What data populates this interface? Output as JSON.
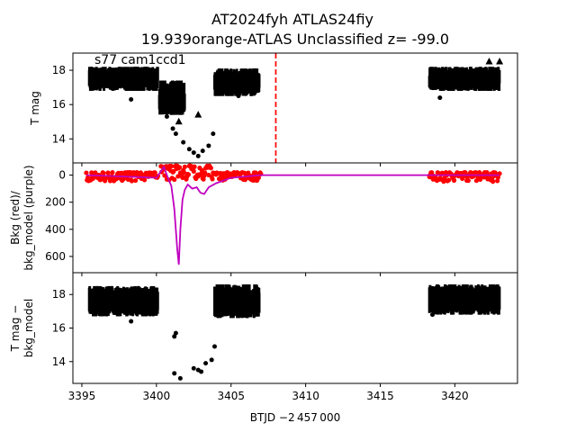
{
  "figure": {
    "title_line1": "AT2024fyh  ATLAS24fiy",
    "title_line2": "19.939orange-ATLAS Unclassified z= -99.0",
    "annotation": "s77 cam1ccd1",
    "xlabel": "BTJD −2 457 000"
  },
  "colors": {
    "points": "#000000",
    "background": "#ff0000",
    "model": "#c000c0",
    "event_line": "#ff0000"
  },
  "chart_data": [
    {
      "type": "scatter",
      "ylabel": "T mag",
      "xlim": [
        3394.4,
        3424.2
      ],
      "ylim": [
        19.0,
        12.6
      ],
      "inverted_y": true,
      "x_ticks": [
        3395,
        3400,
        3405,
        3410,
        3415,
        3420
      ],
      "y_ticks": [
        14,
        16,
        18
      ],
      "vline_x": 3408.0,
      "segments": [
        {
          "x_start": 3395.5,
          "x_end": 3400.1,
          "y_low": 16.8,
          "y_high": 18.2
        },
        {
          "x_start": 3400.2,
          "x_end": 3401.9,
          "y_low": 15.4,
          "y_high": 17.4
        },
        {
          "x_start": 3403.9,
          "x_end": 3406.9,
          "y_low": 16.5,
          "y_high": 18.1
        },
        {
          "x_start": 3418.3,
          "x_end": 3423.0,
          "y_low": 16.8,
          "y_high": 18.2
        }
      ],
      "outliers": [
        {
          "x": 3398.3,
          "y": 16.3
        },
        {
          "x": 3400.7,
          "y": 15.3
        },
        {
          "x": 3401.1,
          "y": 14.6
        },
        {
          "x": 3401.3,
          "y": 14.3
        },
        {
          "x": 3401.8,
          "y": 13.8
        },
        {
          "x": 3402.2,
          "y": 13.4
        },
        {
          "x": 3402.5,
          "y": 13.2
        },
        {
          "x": 3402.8,
          "y": 13.0
        },
        {
          "x": 3403.1,
          "y": 13.3
        },
        {
          "x": 3403.5,
          "y": 13.6
        },
        {
          "x": 3403.8,
          "y": 14.3
        },
        {
          "x": 3405.5,
          "y": 16.5
        },
        {
          "x": 3419.0,
          "y": 16.4
        }
      ],
      "triangles": [
        {
          "x": 3400.8,
          "y": 15.9
        },
        {
          "x": 3401.1,
          "y": 16.1
        },
        {
          "x": 3401.5,
          "y": 15.0
        },
        {
          "x": 3402.8,
          "y": 15.4
        },
        {
          "x": 3422.3,
          "y": 18.5
        },
        {
          "x": 3423.0,
          "y": 18.5
        }
      ]
    },
    {
      "type": "line",
      "ylabel": "Bkg (red)/\nbkg_model (purple)",
      "xlim": [
        3394.4,
        3424.2
      ],
      "ylim": [
        -90,
        720
      ],
      "x_ticks": [
        3395,
        3400,
        3405,
        3410,
        3415,
        3420
      ],
      "y_ticks": [
        0,
        200,
        400,
        600
      ],
      "background_segments": [
        {
          "x_start": 3395.3,
          "x_end": 3400.1,
          "y_low": -20,
          "y_high": 45
        },
        {
          "x_start": 3400.3,
          "x_end": 3403.8,
          "y_low": -70,
          "y_high": 40
        },
        {
          "x_start": 3403.9,
          "x_end": 3407.0,
          "y_low": -20,
          "y_high": 40
        },
        {
          "x_start": 3418.3,
          "x_end": 3423.0,
          "y_low": -20,
          "y_high": 50
        }
      ],
      "model_line": {
        "x": [
          3395.3,
          3399.0,
          3400.0,
          3400.5,
          3400.8,
          3401.0,
          3401.2,
          3401.4,
          3401.5,
          3401.6,
          3401.75,
          3401.9,
          3402.1,
          3402.4,
          3402.7,
          3402.95,
          3403.2,
          3403.5,
          3404.0,
          3405.0,
          3406.0,
          3407.0,
          3418.3,
          3423.0
        ],
        "y": [
          0,
          15,
          20,
          -60,
          30,
          80,
          250,
          550,
          660,
          400,
          180,
          110,
          70,
          100,
          90,
          130,
          140,
          90,
          60,
          20,
          10,
          0,
          0,
          0
        ]
      }
    },
    {
      "type": "scatter",
      "ylabel": "T mag −\nbkg_model",
      "xlim": [
        3394.4,
        3424.2
      ],
      "ylim": [
        19.3,
        12.7
      ],
      "inverted_y": true,
      "x_ticks": [
        3395,
        3400,
        3405,
        3410,
        3415,
        3420
      ],
      "y_ticks": [
        14,
        16,
        18
      ],
      "segments": [
        {
          "x_start": 3395.5,
          "x_end": 3400.1,
          "y_low": 16.7,
          "y_high": 18.5
        },
        {
          "x_start": 3403.9,
          "x_end": 3406.9,
          "y_low": 16.6,
          "y_high": 18.6
        },
        {
          "x_start": 3418.3,
          "x_end": 3423.0,
          "y_low": 16.8,
          "y_high": 18.6
        }
      ],
      "outliers": [
        {
          "x": 3398.3,
          "y": 16.4
        },
        {
          "x": 3401.2,
          "y": 15.5
        },
        {
          "x": 3401.3,
          "y": 15.7
        },
        {
          "x": 3401.2,
          "y": 13.3
        },
        {
          "x": 3401.6,
          "y": 13.0
        },
        {
          "x": 3402.5,
          "y": 13.6
        },
        {
          "x": 3402.8,
          "y": 13.5
        },
        {
          "x": 3403.0,
          "y": 13.4
        },
        {
          "x": 3403.3,
          "y": 13.9
        },
        {
          "x": 3403.7,
          "y": 14.1
        },
        {
          "x": 3403.9,
          "y": 14.9
        },
        {
          "x": 3418.5,
          "y": 16.8
        }
      ]
    }
  ]
}
